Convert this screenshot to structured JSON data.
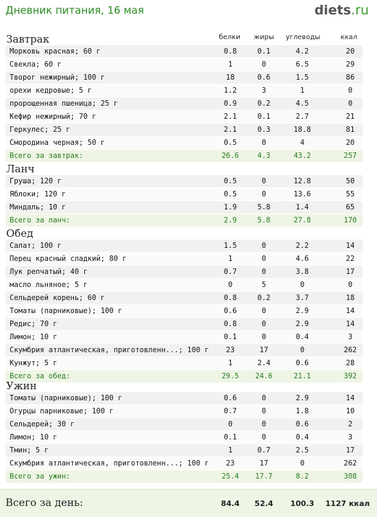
{
  "header": {
    "title": "Дневник питания, 16 мая",
    "logo_main": "diets",
    "logo_tld": ".ru"
  },
  "columns": [
    "белки",
    "жиры",
    "углеводы",
    "ккал"
  ],
  "sections": [
    {
      "title": "Завтрак",
      "rows": [
        [
          "Морковь красная; 60 г",
          "0.8",
          "0.1",
          "4.2",
          "20"
        ],
        [
          "Свекла; 60 г",
          "1",
          "0",
          "6.5",
          "29"
        ],
        [
          "Творог нежирный; 100 г",
          "18",
          "0.6",
          "1.5",
          "86"
        ],
        [
          "орехи кедровые; 5 г",
          "1.2",
          "3",
          "1",
          "0"
        ],
        [
          "пророщенная пшеница; 25 г",
          "0.9",
          "0.2",
          "4.5",
          "0"
        ],
        [
          "Кефир нежирный; 70 г",
          "2.1",
          "0.1",
          "2.7",
          "21"
        ],
        [
          "Геркулес; 25 г",
          "2.1",
          "0.3",
          "18.8",
          "81"
        ],
        [
          "Смородина черная; 50 г",
          "0.5",
          "0",
          "4",
          "20"
        ]
      ],
      "total": [
        "Всего за завтрак:",
        "26.6",
        "4.3",
        "43.2",
        "257"
      ]
    },
    {
      "title": "Ланч",
      "rows": [
        [
          "Груша; 120 г",
          "0.5",
          "0",
          "12.8",
          "50"
        ],
        [
          "Яблоки; 120 г",
          "0.5",
          "0",
          "13.6",
          "55"
        ],
        [
          "Миндаль; 10 г",
          "1.9",
          "5.8",
          "1.4",
          "65"
        ]
      ],
      "total": [
        "Всего за ланч:",
        "2.9",
        "5.8",
        "27.8",
        "170"
      ]
    },
    {
      "title": "Обед",
      "rows": [
        [
          "Салат; 100 г",
          "1.5",
          "0",
          "2.2",
          "14"
        ],
        [
          "Перец красный сладкий; 80 г",
          "1",
          "0",
          "4.6",
          "22"
        ],
        [
          "Лук репчатый; 40 г",
          "0.7",
          "0",
          "3.8",
          "17"
        ],
        [
          "масло льняное; 5 г",
          "0",
          "5",
          "0",
          "0"
        ],
        [
          "Сельдерей корень; 60 г",
          "0.8",
          "0.2",
          "3.7",
          "18"
        ],
        [
          "Томаты (парниковые); 100 г",
          "0.6",
          "0",
          "2.9",
          "14"
        ],
        [
          "Редис; 70 г",
          "0.8",
          "0",
          "2.9",
          "14"
        ],
        [
          "Лимон; 10 г",
          "0.1",
          "0",
          "0.4",
          "3"
        ],
        [
          "Скумбрия атлантическая, приготовленн...; 100 г",
          "23",
          "17",
          "0",
          "262"
        ],
        [
          "Кунжут; 5 г",
          "1",
          "2.4",
          "0.6",
          "28"
        ]
      ],
      "total": [
        "Всего за обед:",
        "29.5",
        "24.6",
        "21.1",
        "392"
      ]
    },
    {
      "title": "Ужин",
      "rows": [
        [
          "Томаты (парниковые); 100 г",
          "0.6",
          "0",
          "2.9",
          "14"
        ],
        [
          "Огурцы парниковые; 100 г",
          "0.7",
          "0",
          "1.8",
          "10"
        ],
        [
          "Сельдерей; 30 г",
          "0",
          "0",
          "0.6",
          "2"
        ],
        [
          "Лимон; 10 г",
          "0.1",
          "0",
          "0.4",
          "3"
        ],
        [
          "Тмин; 5 г",
          "1",
          "0.7",
          "2.5",
          "17"
        ],
        [
          "Скумбрия атлантическая, приготовленн...; 100 г",
          "23",
          "17",
          "0",
          "262"
        ]
      ],
      "total": [
        "Всего за ужин:",
        "25.4",
        "17.7",
        "8.2",
        "308"
      ]
    }
  ],
  "footer": {
    "label": "Всего за день:",
    "values": [
      "84.4",
      "52.4",
      "100.3",
      "1127 ккал"
    ]
  },
  "colors": {
    "title_green": "#2a8a22",
    "total_green": "#2a7a20",
    "total_bg": "#eef5e5"
  }
}
